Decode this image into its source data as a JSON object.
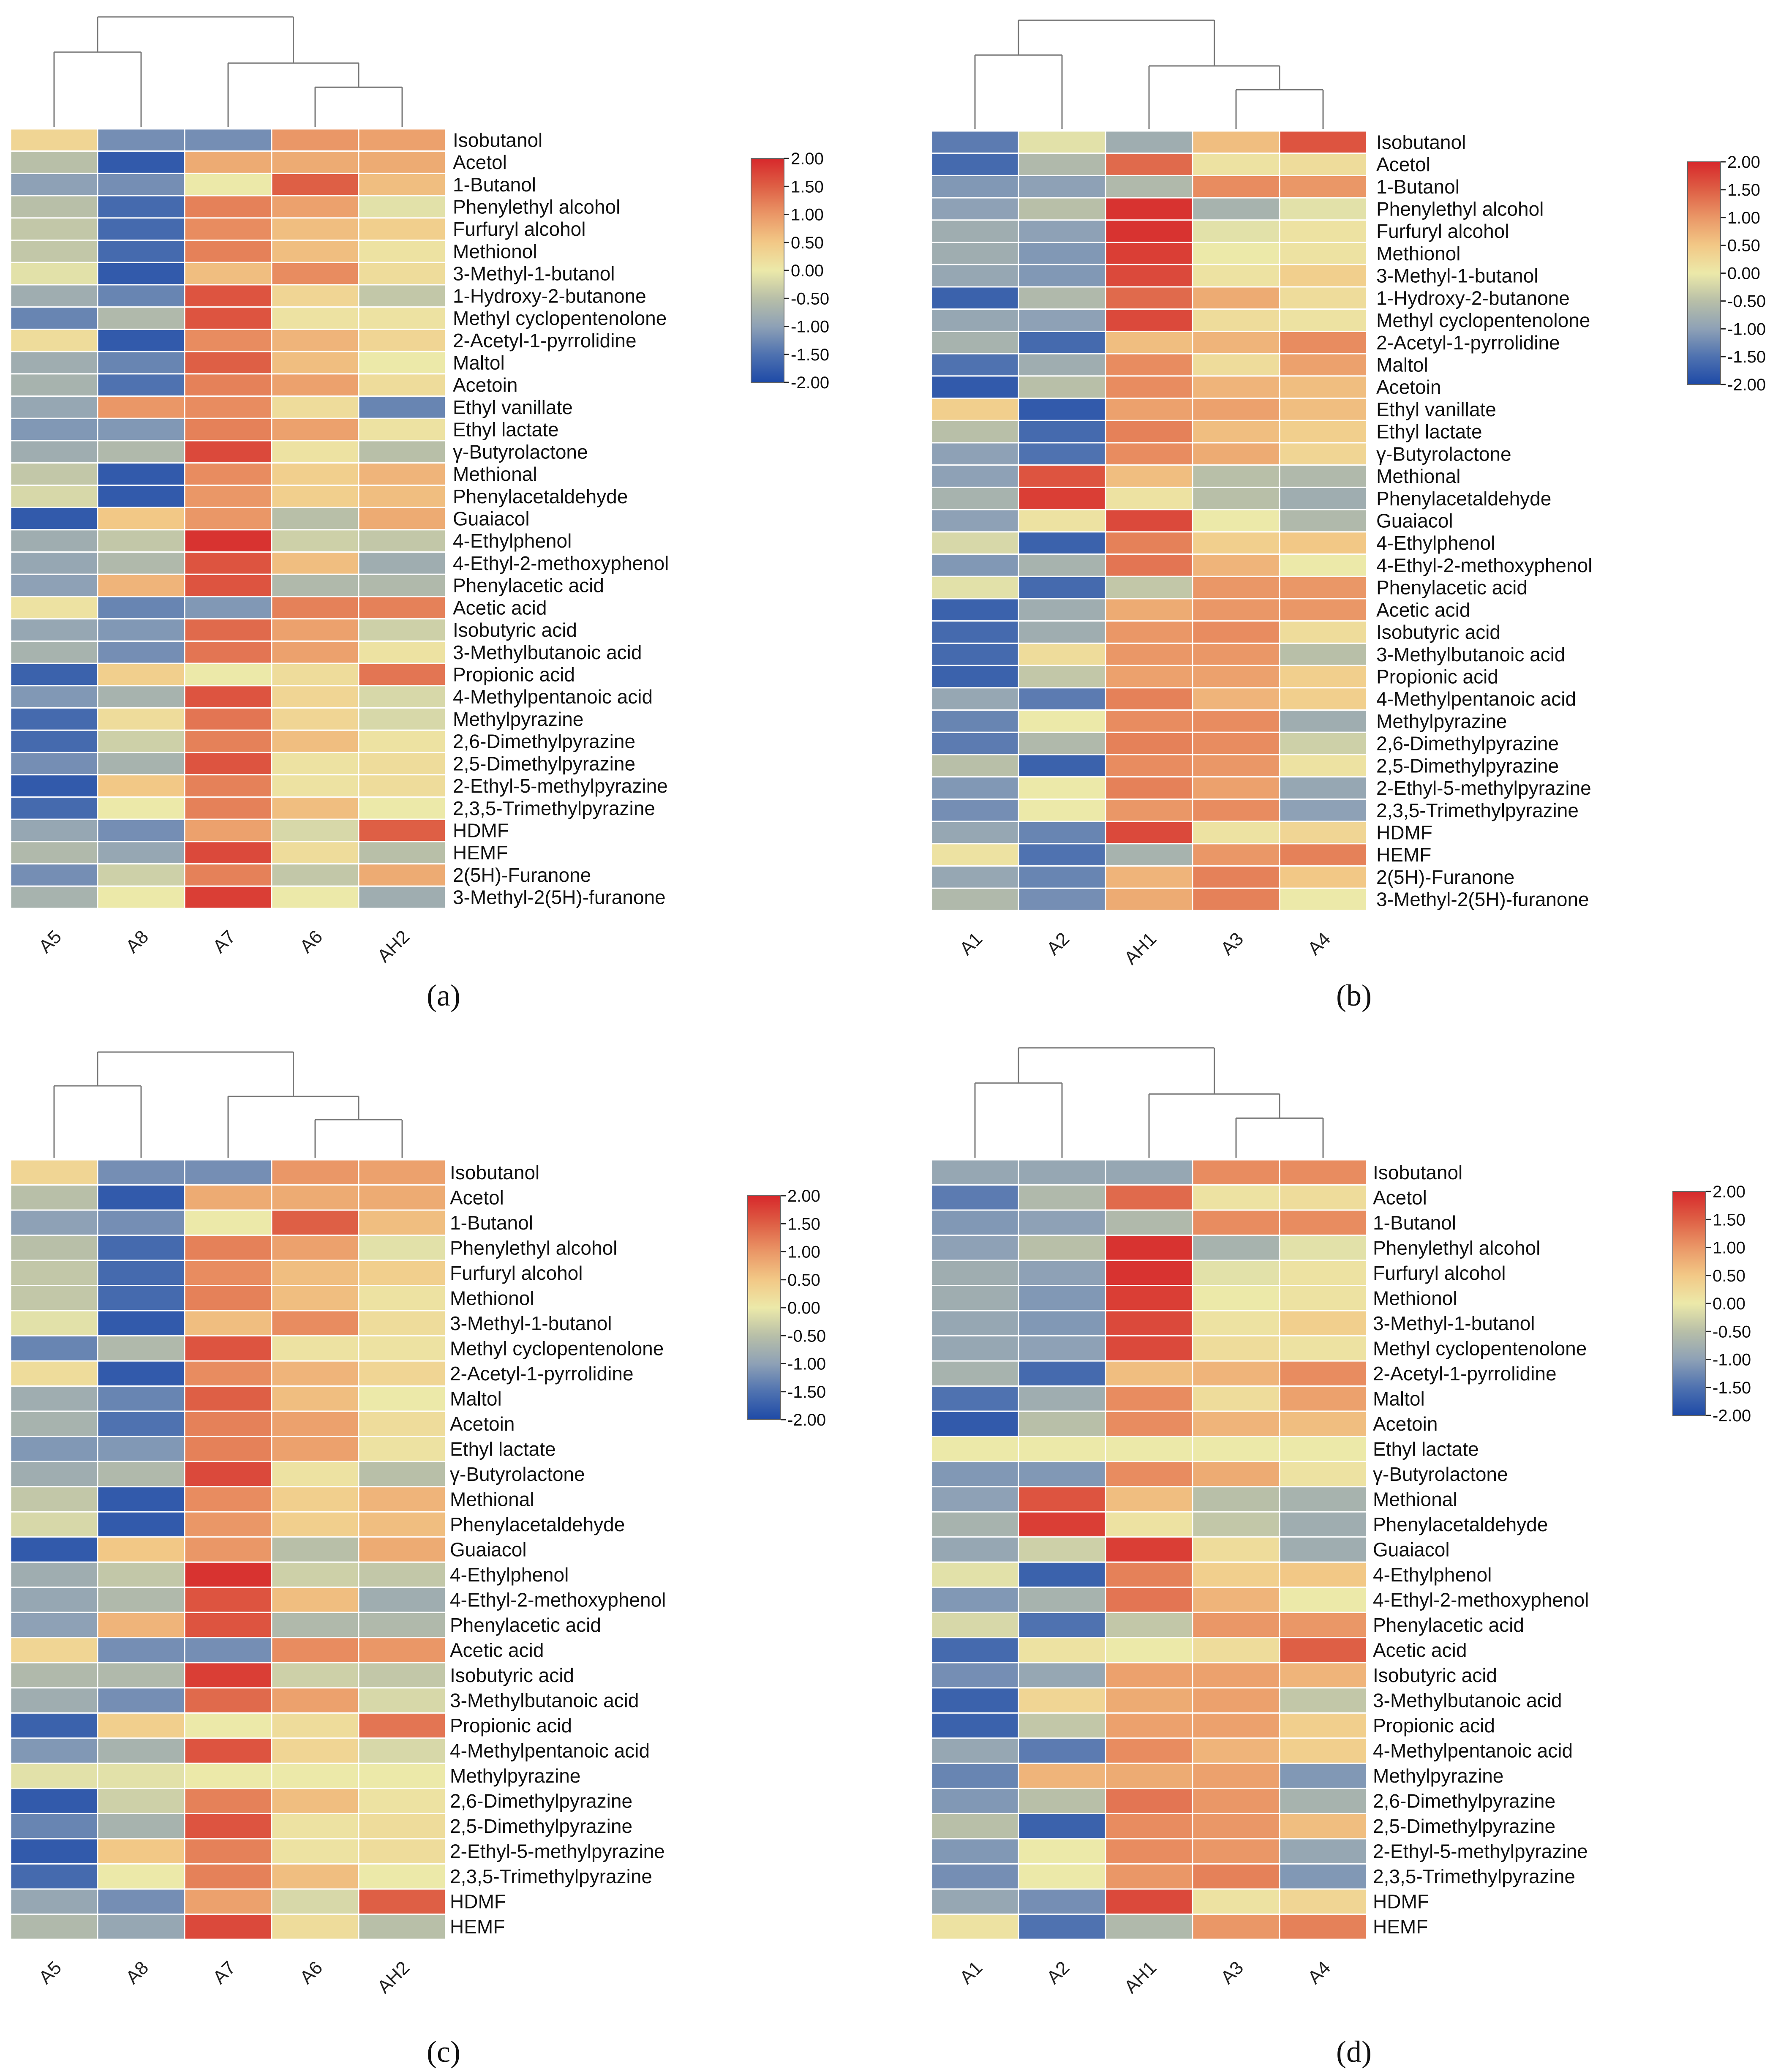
{
  "colors": {
    "low": "#1e4aa7",
    "mid": "#ece9a9",
    "high": "#d7282b",
    "ramp": [
      "#1e4aa7",
      "#4f72b0",
      "#8ea1b6",
      "#b8bfa8",
      "#ece9a9",
      "#f2c886",
      "#ea9767",
      "#de5f45",
      "#d7282b"
    ]
  },
  "chart_data": [
    {
      "type": "heatmap",
      "panel_label": "(a)",
      "columns": [
        "A5",
        "A8",
        "A7",
        "A6",
        "AH2"
      ],
      "rows": [
        "Isobutanol",
        "Acetol",
        "1-Butanol",
        "Phenylethyl alcohol",
        "Furfuryl alcohol",
        "Methionol",
        "3-Methyl-1-butanol",
        "1-Hydroxy-2-butanone",
        "Methyl cyclopentenolone",
        "2-Acetyl-1-pyrrolidine",
        "Maltol",
        "Acetoin",
        "Ethyl vanillate",
        "Ethyl lactate",
        "γ-Butyrolactone",
        "Methional",
        "Phenylacetaldehyde",
        "Guaiacol",
        "4-Ethylphenol",
        "4-Ethyl-2-methoxyphenol",
        "Phenylacetic acid",
        "Acetic acid",
        "Isobutyric acid",
        "3-Methylbutanoic acid",
        "Propionic acid",
        "4-Methylpentanoic acid",
        "Methylpyrazine",
        "2,6-Dimethylpyrazine",
        "2,5-Dimethylpyrazine",
        "2-Ethyl-5-methylpyrazine",
        "2,3,5-Trimethylpyrazine",
        "HDMF",
        "HEMF",
        "2(5H)-Furanone",
        "3-Methyl-2(5H)-furanone"
      ],
      "values": [
        [
          0.3,
          -1.2,
          -1.2,
          1.0,
          0.9
        ],
        [
          -0.5,
          -1.8,
          0.8,
          0.8,
          0.8
        ],
        [
          -1.0,
          -1.2,
          0.0,
          1.5,
          0.6
        ],
        [
          -0.5,
          -1.6,
          1.2,
          0.9,
          -0.1
        ],
        [
          -0.4,
          -1.6,
          1.1,
          0.6,
          0.4
        ],
        [
          -0.4,
          -1.6,
          1.2,
          0.6,
          0.1
        ],
        [
          -0.1,
          -1.8,
          0.6,
          1.1,
          0.2
        ],
        [
          -0.8,
          -1.3,
          1.6,
          0.3,
          -0.4
        ],
        [
          -1.3,
          -0.6,
          1.6,
          0.1,
          0.1
        ],
        [
          0.2,
          -1.8,
          1.1,
          0.7,
          0.3
        ],
        [
          -0.8,
          -1.3,
          1.5,
          0.6,
          0.0
        ],
        [
          -0.7,
          -1.5,
          1.2,
          0.9,
          0.2
        ],
        [
          -0.9,
          1.0,
          1.1,
          0.2,
          -1.3
        ],
        [
          -1.1,
          -1.1,
          1.2,
          0.9,
          0.1
        ],
        [
          -0.8,
          -0.6,
          1.7,
          0.1,
          -0.5
        ],
        [
          -0.4,
          -1.8,
          1.1,
          0.4,
          0.7
        ],
        [
          -0.2,
          -1.8,
          1.0,
          0.4,
          0.6
        ],
        [
          -1.8,
          0.5,
          1.0,
          -0.5,
          0.8
        ],
        [
          -0.8,
          -0.4,
          1.9,
          -0.3,
          -0.4
        ],
        [
          -0.9,
          -0.6,
          1.6,
          0.6,
          -0.8
        ],
        [
          -1.0,
          0.7,
          1.6,
          -0.6,
          -0.6
        ],
        [
          0.1,
          -1.3,
          -1.1,
          1.2,
          1.2
        ],
        [
          -0.9,
          -1.1,
          1.4,
          0.9,
          -0.3
        ],
        [
          -0.7,
          -1.2,
          1.3,
          0.9,
          0.1
        ],
        [
          -1.7,
          0.4,
          0.0,
          0.2,
          1.3
        ],
        [
          -1.1,
          -0.7,
          1.6,
          0.3,
          -0.2
        ],
        [
          -1.6,
          0.2,
          1.3,
          0.3,
          -0.2
        ],
        [
          -1.6,
          -0.3,
          1.2,
          0.6,
          0.1
        ],
        [
          -1.2,
          -0.7,
          1.6,
          0.1,
          0.2
        ],
        [
          -1.8,
          0.5,
          1.2,
          0.1,
          0.2
        ],
        [
          -1.6,
          0.0,
          1.2,
          0.6,
          0.0
        ],
        [
          -0.9,
          -1.2,
          0.9,
          -0.2,
          1.5
        ],
        [
          -0.6,
          -0.9,
          1.7,
          0.2,
          -0.5
        ],
        [
          -1.2,
          -0.3,
          1.2,
          -0.4,
          0.8
        ],
        [
          -0.7,
          0.0,
          1.8,
          0.0,
          -0.8
        ]
      ],
      "scale": {
        "ticks": [
          "2.00",
          "1.50",
          "1.00",
          "0.50",
          "0.00",
          "-0.50",
          "-1.00",
          "-1.50",
          "-2.00"
        ],
        "range": [
          -2,
          2
        ]
      }
    },
    {
      "type": "heatmap",
      "panel_label": "(b)",
      "columns": [
        "A1",
        "A2",
        "AH1",
        "A3",
        "A4"
      ],
      "rows": [
        "Isobutanol",
        "Acetol",
        "1-Butanol",
        "Phenylethyl alcohol",
        "Furfuryl alcohol",
        "Methionol",
        "3-Methyl-1-butanol",
        "1-Hydroxy-2-butanone",
        "Methyl cyclopentenolone",
        "2-Acetyl-1-pyrrolidine",
        "Maltol",
        "Acetoin",
        "Ethyl vanillate",
        "Ethyl lactate",
        "γ-Butyrolactone",
        "Methional",
        "Phenylacetaldehyde",
        "Guaiacol",
        "4-Ethylphenol",
        "4-Ethyl-2-methoxyphenol",
        "Phenylacetic acid",
        "Acetic acid",
        "Isobutyric acid",
        "3-Methylbutanoic acid",
        "Propionic acid",
        "4-Methylpentanoic acid",
        "Methylpyrazine",
        "2,6-Dimethylpyrazine",
        "2,5-Dimethylpyrazine",
        "2-Ethyl-5-methylpyrazine",
        "2,3,5-Trimethylpyrazine",
        "HDMF",
        "HEMF",
        "2(5H)-Furanone",
        "3-Methyl-2(5H)-furanone"
      ],
      "values": [
        [
          -1.4,
          -0.1,
          -0.8,
          0.6,
          1.6
        ],
        [
          -1.6,
          -0.6,
          1.4,
          0.1,
          0.2
        ],
        [
          -1.1,
          -1.0,
          -0.6,
          1.1,
          1.0
        ],
        [
          -1.0,
          -0.5,
          1.9,
          -0.7,
          -0.1
        ],
        [
          -0.8,
          -1.0,
          1.9,
          -0.1,
          0.1
        ],
        [
          -0.8,
          -1.1,
          1.8,
          0.0,
          0.1
        ],
        [
          -0.9,
          -1.1,
          1.7,
          0.1,
          0.4
        ],
        [
          -1.7,
          -0.6,
          1.4,
          0.8,
          0.2
        ],
        [
          -0.9,
          -1.0,
          1.7,
          0.2,
          0.1
        ],
        [
          -0.7,
          -1.6,
          0.6,
          0.7,
          1.1
        ],
        [
          -1.5,
          -0.8,
          1.1,
          0.2,
          0.9
        ],
        [
          -1.8,
          -0.5,
          1.1,
          0.7,
          0.6
        ],
        [
          0.4,
          -1.8,
          0.9,
          0.9,
          0.6
        ],
        [
          -0.5,
          -1.6,
          1.2,
          0.6,
          0.4
        ],
        [
          -1.0,
          -1.5,
          1.1,
          0.8,
          0.3
        ],
        [
          -1.0,
          1.6,
          0.6,
          -0.5,
          -0.6
        ],
        [
          -0.7,
          1.8,
          0.1,
          -0.5,
          -0.8
        ],
        [
          -1.0,
          0.1,
          1.7,
          0.0,
          -0.6
        ],
        [
          -0.2,
          -1.7,
          1.2,
          0.4,
          0.5
        ],
        [
          -1.1,
          -0.7,
          1.3,
          0.7,
          0.0
        ],
        [
          -0.1,
          -1.6,
          -0.4,
          1.0,
          1.0
        ],
        [
          -1.7,
          -0.8,
          0.8,
          1.0,
          1.0
        ],
        [
          -1.6,
          -0.8,
          1.0,
          1.1,
          0.2
        ],
        [
          -1.6,
          0.2,
          1.0,
          1.0,
          -0.5
        ],
        [
          -1.7,
          -0.4,
          0.9,
          0.9,
          0.4
        ],
        [
          -0.9,
          -1.4,
          1.2,
          0.7,
          0.4
        ],
        [
          -1.3,
          0.0,
          1.1,
          1.1,
          -0.8
        ],
        [
          -1.4,
          -0.6,
          1.2,
          1.1,
          -0.3
        ],
        [
          -0.5,
          -1.7,
          1.1,
          1.0,
          0.1
        ],
        [
          -1.1,
          0.0,
          1.2,
          0.9,
          -0.9
        ],
        [
          -1.2,
          0.0,
          1.0,
          1.1,
          -1.0
        ],
        [
          -0.9,
          -1.3,
          1.7,
          0.1,
          0.3
        ],
        [
          0.1,
          -1.5,
          -0.7,
          1.0,
          1.2
        ],
        [
          -0.9,
          -1.3,
          0.7,
          1.2,
          0.5
        ],
        [
          -0.6,
          -1.2,
          0.8,
          1.2,
          0.0
        ]
      ],
      "scale": {
        "ticks": [
          "2.00",
          "1.50",
          "1.00",
          "0.50",
          "0.00",
          "-0.50",
          "-1.00",
          "-1.50",
          "-2.00"
        ],
        "range": [
          -2,
          2
        ]
      }
    },
    {
      "type": "heatmap",
      "panel_label": "(c)",
      "columns": [
        "A5",
        "A8",
        "A7",
        "A6",
        "AH2"
      ],
      "rows": [
        "Isobutanol",
        "Acetol",
        "1-Butanol",
        "Phenylethyl alcohol",
        "Furfuryl alcohol",
        "Methionol",
        "3-Methyl-1-butanol",
        "Methyl cyclopentenolone",
        "2-Acetyl-1-pyrrolidine",
        "Maltol",
        "Acetoin",
        "Ethyl lactate",
        "γ-Butyrolactone",
        "Methional",
        "Phenylacetaldehyde",
        "Guaiacol",
        "4-Ethylphenol",
        "4-Ethyl-2-methoxyphenol",
        "Phenylacetic acid",
        "Acetic acid",
        "Isobutyric acid",
        "3-Methylbutanoic acid",
        "Propionic acid",
        "4-Methylpentanoic acid",
        "Methylpyrazine",
        "2,6-Dimethylpyrazine",
        "2,5-Dimethylpyrazine",
        "2-Ethyl-5-methylpyrazine",
        "2,3,5-Trimethylpyrazine",
        "HDMF",
        "HEMF"
      ],
      "values": [
        [
          0.3,
          -1.2,
          -1.2,
          1.0,
          0.9
        ],
        [
          -0.5,
          -1.8,
          0.8,
          0.8,
          0.8
        ],
        [
          -1.0,
          -1.2,
          0.0,
          1.5,
          0.6
        ],
        [
          -0.5,
          -1.6,
          1.2,
          0.9,
          -0.1
        ],
        [
          -0.4,
          -1.6,
          1.1,
          0.6,
          0.4
        ],
        [
          -0.4,
          -1.6,
          1.2,
          0.6,
          0.1
        ],
        [
          -0.1,
          -1.8,
          0.6,
          1.1,
          0.2
        ],
        [
          -1.3,
          -0.6,
          1.6,
          0.1,
          0.1
        ],
        [
          0.2,
          -1.8,
          1.1,
          0.7,
          0.3
        ],
        [
          -0.8,
          -1.3,
          1.5,
          0.6,
          0.0
        ],
        [
          -0.7,
          -1.5,
          1.2,
          0.9,
          0.2
        ],
        [
          -1.1,
          -1.1,
          1.2,
          0.9,
          0.1
        ],
        [
          -0.8,
          -0.6,
          1.7,
          0.1,
          -0.5
        ],
        [
          -0.4,
          -1.8,
          1.1,
          0.4,
          0.7
        ],
        [
          -0.2,
          -1.8,
          1.0,
          0.4,
          0.6
        ],
        [
          -1.8,
          0.5,
          1.0,
          -0.5,
          0.8
        ],
        [
          -0.8,
          -0.4,
          1.9,
          -0.3,
          -0.4
        ],
        [
          -0.9,
          -0.6,
          1.6,
          0.6,
          -0.8
        ],
        [
          -1.0,
          0.7,
          1.6,
          -0.6,
          -0.6
        ],
        [
          0.3,
          -1.2,
          -1.2,
          1.1,
          1.0
        ],
        [
          -0.6,
          -0.6,
          1.8,
          -0.3,
          -0.4
        ],
        [
          -0.8,
          -1.2,
          1.4,
          0.9,
          -0.2
        ],
        [
          -1.7,
          0.4,
          0.0,
          0.2,
          1.3
        ],
        [
          -1.1,
          -0.7,
          1.6,
          0.3,
          -0.2
        ],
        [
          -0.1,
          -0.1,
          0.0,
          0.0,
          0.0
        ],
        [
          -1.8,
          -0.3,
          1.2,
          0.6,
          0.1
        ],
        [
          -1.3,
          -0.7,
          1.6,
          0.1,
          0.2
        ],
        [
          -1.8,
          0.5,
          1.2,
          0.1,
          0.2
        ],
        [
          -1.6,
          0.0,
          1.2,
          0.6,
          0.0
        ],
        [
          -0.9,
          -1.2,
          0.9,
          -0.2,
          1.5
        ],
        [
          -0.6,
          -0.9,
          1.7,
          0.2,
          -0.5
        ]
      ],
      "scale": {
        "ticks": [
          "2.00",
          "1.50",
          "1.00",
          "0.50",
          "0.00",
          "-0.50",
          "-1.00",
          "-1.50",
          "-2.00"
        ],
        "range": [
          -2,
          2
        ]
      }
    },
    {
      "type": "heatmap",
      "panel_label": "(d)",
      "columns": [
        "A1",
        "A2",
        "AH1",
        "A3",
        "A4"
      ],
      "rows": [
        "Isobutanol",
        "Acetol",
        "1-Butanol",
        "Phenylethyl alcohol",
        "Furfuryl alcohol",
        "Methionol",
        "3-Methyl-1-butanol",
        "Methyl cyclopentenolone",
        "2-Acetyl-1-pyrrolidine",
        "Maltol",
        "Acetoin",
        "Ethyl lactate",
        "γ-Butyrolactone",
        "Methional",
        "Phenylacetaldehyde",
        "Guaiacol",
        "4-Ethylphenol",
        "4-Ethyl-2-methoxyphenol",
        "Phenylacetic acid",
        "Acetic acid",
        "Isobutyric acid",
        "3-Methylbutanoic acid",
        "Propionic acid",
        "4-Methylpentanoic acid",
        "Methylpyrazine",
        "2,6-Dimethylpyrazine",
        "2,5-Dimethylpyrazine",
        "2-Ethyl-5-methylpyrazine",
        "2,3,5-Trimethylpyrazine",
        "HDMF",
        "HEMF"
      ],
      "values": [
        [
          -0.9,
          -0.9,
          -0.9,
          1.1,
          1.1
        ],
        [
          -1.4,
          -0.6,
          1.4,
          0.1,
          0.2
        ],
        [
          -1.1,
          -1.0,
          -0.6,
          1.1,
          1.1
        ],
        [
          -1.0,
          -0.5,
          1.9,
          -0.7,
          -0.1
        ],
        [
          -0.8,
          -1.0,
          1.9,
          -0.1,
          0.1
        ],
        [
          -0.8,
          -1.1,
          1.8,
          0.0,
          0.1
        ],
        [
          -0.9,
          -1.1,
          1.7,
          0.1,
          0.4
        ],
        [
          -0.9,
          -1.0,
          1.7,
          0.2,
          0.1
        ],
        [
          -0.7,
          -1.6,
          0.6,
          0.7,
          1.1
        ],
        [
          -1.5,
          -0.8,
          1.1,
          0.2,
          0.9
        ],
        [
          -1.8,
          -0.5,
          1.1,
          0.7,
          0.6
        ],
        [
          0.0,
          0.0,
          0.0,
          0.0,
          0.0
        ],
        [
          -1.1,
          -1.1,
          1.1,
          0.8,
          0.1
        ],
        [
          -1.0,
          1.6,
          0.6,
          -0.5,
          -0.7
        ],
        [
          -0.7,
          1.8,
          0.1,
          -0.4,
          -0.8
        ],
        [
          -0.9,
          -0.3,
          1.8,
          0.2,
          -0.8
        ],
        [
          -0.1,
          -1.7,
          1.2,
          0.4,
          0.5
        ],
        [
          -1.1,
          -0.7,
          1.3,
          0.7,
          0.0
        ],
        [
          -0.2,
          -1.5,
          -0.4,
          1.0,
          1.0
        ],
        [
          -1.6,
          0.1,
          0.0,
          0.2,
          1.5
        ],
        [
          -1.2,
          -0.9,
          0.9,
          0.9,
          0.7
        ],
        [
          -1.7,
          0.3,
          0.8,
          0.9,
          -0.4
        ],
        [
          -1.7,
          -0.4,
          0.9,
          0.9,
          0.4
        ],
        [
          -0.9,
          -1.4,
          1.1,
          0.7,
          0.4
        ],
        [
          -1.3,
          0.7,
          0.8,
          0.9,
          -1.1
        ],
        [
          -1.1,
          -0.5,
          1.3,
          1.0,
          -0.7
        ],
        [
          -0.5,
          -1.7,
          1.1,
          1.0,
          0.6
        ],
        [
          -1.1,
          0.0,
          1.1,
          1.0,
          -0.9
        ],
        [
          -1.2,
          0.0,
          1.0,
          1.2,
          -1.1
        ],
        [
          -0.9,
          -1.2,
          1.7,
          0.1,
          0.3
        ],
        [
          0.1,
          -1.5,
          -0.6,
          1.0,
          1.2
        ]
      ],
      "scale": {
        "ticks": [
          "2.00",
          "1.50",
          "1.00",
          "0.50",
          "0.00",
          "-0.50",
          "-1.00",
          "-1.50",
          "-2.00"
        ],
        "range": [
          -2,
          2
        ]
      }
    }
  ]
}
